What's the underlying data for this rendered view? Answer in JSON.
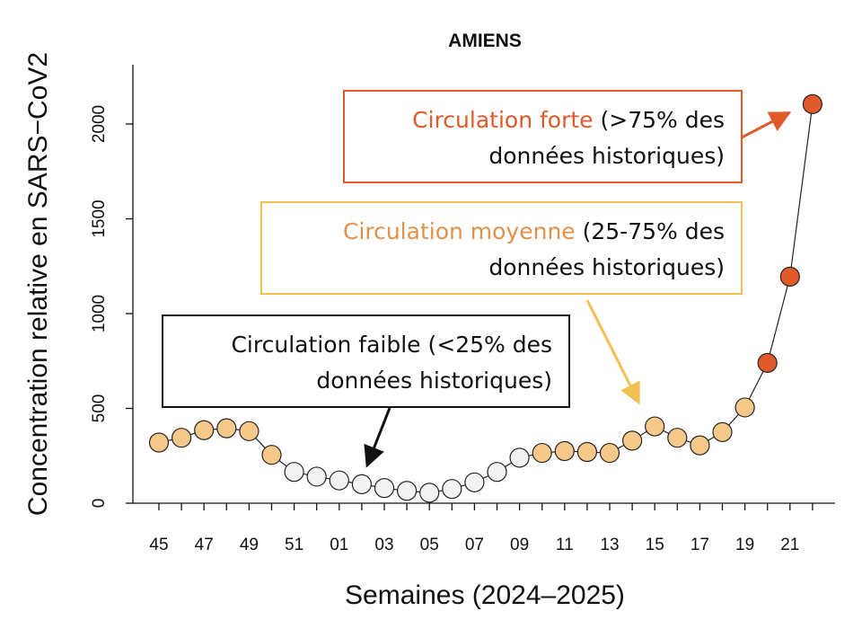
{
  "chart_data": {
    "type": "line",
    "title": "AMIENS",
    "xlabel": "Semaines (2024–2025)",
    "ylabel": "Concentration relative en SARS−CoV2",
    "x_tick_labels": [
      "45",
      "47",
      "49",
      "51",
      "01",
      "03",
      "05",
      "07",
      "09",
      "11",
      "13",
      "15",
      "17",
      "19",
      "21"
    ],
    "y_ticks": [
      0,
      500,
      1000,
      1500,
      2000
    ],
    "ylim": [
      0,
      2300
    ],
    "x": [
      "45",
      "46",
      "47",
      "48",
      "49",
      "50",
      "51",
      "52",
      "01",
      "02",
      "03",
      "04",
      "05",
      "06",
      "07",
      "08",
      "09",
      "10",
      "11",
      "12",
      "13",
      "14",
      "15",
      "16",
      "17",
      "18",
      "19",
      "20",
      "21",
      "22"
    ],
    "values": [
      320,
      345,
      385,
      395,
      380,
      255,
      165,
      140,
      120,
      100,
      80,
      65,
      55,
      75,
      110,
      165,
      240,
      265,
      275,
      270,
      265,
      330,
      405,
      345,
      305,
      375,
      505,
      740,
      1195,
      2105
    ],
    "categories": [
      "faible",
      "faible",
      "faible",
      "faible",
      "faible",
      "faible",
      "faible",
      "faible",
      "faible",
      "faible",
      "faible",
      "faible",
      "faible",
      "faible",
      "faible",
      "faible",
      "faible",
      "faible",
      "faible",
      "faible",
      "faible",
      "faible",
      "faible",
      "faible",
      "faible",
      "faible",
      "faible",
      "forte",
      "forte",
      "forte"
    ],
    "point_colors": [
      "#f6c98a",
      "#f6c98a",
      "#f6c98a",
      "#f6c98a",
      "#f6c98a",
      "#f6c98a",
      "#f2f2f2",
      "#f2f2f2",
      "#f2f2f2",
      "#f2f2f2",
      "#f2f2f2",
      "#f2f2f2",
      "#f2f2f2",
      "#f2f2f2",
      "#f2f2f2",
      "#f2f2f2",
      "#f2f2f2",
      "#f6c98a",
      "#f6c98a",
      "#f6c98a",
      "#f6c98a",
      "#f6c98a",
      "#f6c98a",
      "#f6c98a",
      "#f6c98a",
      "#f6c98a",
      "#f6c98a",
      "#e05a2a",
      "#e05a2a",
      "#e05a2a"
    ],
    "grid": false
  },
  "annotations": {
    "strong": {
      "highlight": "Circulation forte",
      "rest": " (>75% des",
      "line2": "données historiques)",
      "color": "#e05a2a"
    },
    "medium": {
      "highlight": "Circulation moyenne",
      "rest": " (25-75% des",
      "line2": "données historiques)",
      "color": "#f0c050"
    },
    "weak": {
      "line1": "Circulation faible (<25% des",
      "line2": "données historiques)",
      "color": "#111111"
    }
  }
}
